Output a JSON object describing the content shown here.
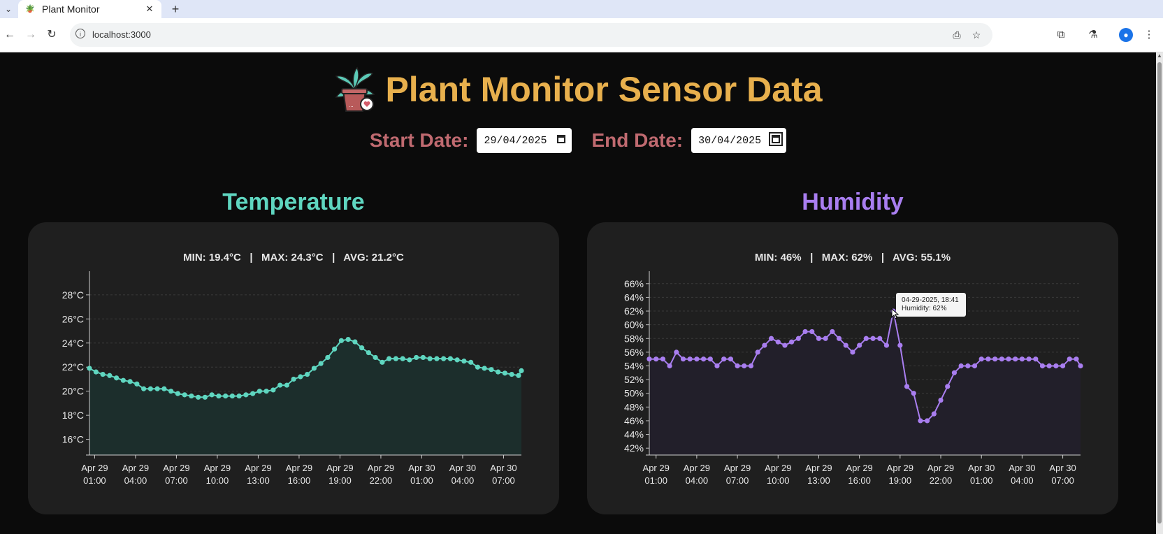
{
  "browser": {
    "tab_title": "Plant Monitor",
    "url": "localhost:3000"
  },
  "header": {
    "title": "Plant Monitor Sensor Data"
  },
  "filters": {
    "start_label": "Start Date:",
    "start_value": "29/04/2025",
    "end_label": "End Date:",
    "end_value": "30/04/2025"
  },
  "colors": {
    "title": "#e8b04d",
    "date_label": "#c06a70",
    "temperature": "#5fd6c0",
    "humidity": "#a97ef0"
  },
  "temperature": {
    "heading": "Temperature",
    "stats": "MIN: 19.4°C   |   MAX: 24.3°C   |   AVG: 21.2°C"
  },
  "humidity": {
    "heading": "Humidity",
    "stats": "MIN: 46%   |   MAX: 62%   |   AVG: 55.1%",
    "tooltip_line1": "04-29-2025, 18:41",
    "tooltip_line2": "Humidity: 62%"
  },
  "chart_data": [
    {
      "type": "area",
      "title": "Temperature",
      "y_unit": "°C",
      "ylim": [
        14.7,
        29.5
      ],
      "y_ticks": [
        16,
        18,
        20,
        22,
        24,
        26,
        28
      ],
      "y_tick_labels": [
        "16°C",
        "18°C",
        "20°C",
        "22°C",
        "24°C",
        "26°C",
        "28°C"
      ],
      "x_range_hours": [
        0.12,
        31.81
      ],
      "x_tick_hours": [
        0.5,
        3.5,
        6.5,
        9.5,
        12.5,
        15.5,
        18.5,
        21.5,
        24.5,
        27.5,
        30.5
      ],
      "x_tick_labels": [
        [
          "Apr 29",
          "01:00"
        ],
        [
          "Apr 29",
          "04:00"
        ],
        [
          "Apr 29",
          "07:00"
        ],
        [
          "Apr 29",
          "10:00"
        ],
        [
          "Apr 29",
          "13:00"
        ],
        [
          "Apr 29",
          "16:00"
        ],
        [
          "Apr 29",
          "19:00"
        ],
        [
          "Apr 29",
          "22:00"
        ],
        [
          "Apr 30",
          "01:00"
        ],
        [
          "Apr 30",
          "04:00"
        ],
        [
          "Apr 30",
          "07:00"
        ]
      ],
      "grid": true,
      "color": "#5fd6c0",
      "fill": "#1c2e2c",
      "x_hours": [
        0.12,
        0.6,
        1.1,
        1.6,
        2.1,
        2.6,
        3.1,
        3.6,
        4.1,
        4.6,
        5.1,
        5.6,
        6.1,
        6.6,
        7.1,
        7.6,
        8.1,
        8.6,
        9.1,
        9.6,
        10.1,
        10.6,
        11.1,
        11.6,
        12.1,
        12.6,
        13.1,
        13.6,
        14.1,
        14.6,
        15.1,
        15.6,
        16.1,
        16.6,
        17.1,
        17.6,
        18.1,
        18.6,
        19.1,
        19.6,
        20.1,
        20.6,
        21.1,
        21.6,
        22.1,
        22.6,
        23.1,
        23.6,
        24.1,
        24.6,
        25.1,
        25.6,
        26.1,
        26.6,
        27.1,
        27.6,
        28.1,
        28.6,
        29.1,
        29.6,
        30.1,
        30.6,
        31.1,
        31.6,
        31.81
      ],
      "values": [
        21.9,
        21.6,
        21.4,
        21.3,
        21.1,
        20.9,
        20.8,
        20.6,
        20.2,
        20.2,
        20.2,
        20.2,
        20.0,
        19.8,
        19.7,
        19.6,
        19.5,
        19.5,
        19.7,
        19.6,
        19.6,
        19.6,
        19.6,
        19.7,
        19.8,
        20.0,
        20.0,
        20.1,
        20.5,
        20.5,
        21.0,
        21.2,
        21.4,
        21.9,
        22.3,
        22.8,
        23.5,
        24.2,
        24.3,
        24.1,
        23.6,
        23.2,
        22.8,
        22.4,
        22.7,
        22.7,
        22.7,
        22.6,
        22.8,
        22.8,
        22.7,
        22.7,
        22.7,
        22.7,
        22.6,
        22.5,
        22.4,
        22.0,
        21.9,
        21.8,
        21.6,
        21.5,
        21.4,
        21.3,
        21.7
      ]
    },
    {
      "type": "line",
      "title": "Humidity",
      "y_unit": "%",
      "ylim": [
        41,
        67
      ],
      "y_ticks": [
        42,
        44,
        46,
        48,
        50,
        52,
        54,
        56,
        58,
        60,
        62,
        64,
        66
      ],
      "y_tick_labels": [
        "42%",
        "44%",
        "46%",
        "48%",
        "50%",
        "52%",
        "54%",
        "56%",
        "58%",
        "60%",
        "62%",
        "64%",
        "66%"
      ],
      "x_range_hours": [
        0.0,
        31.81
      ],
      "x_tick_hours": [
        0.5,
        3.5,
        6.5,
        9.5,
        12.5,
        15.5,
        18.5,
        21.5,
        24.5,
        27.5,
        30.5
      ],
      "x_tick_labels": [
        [
          "Apr 29",
          "01:00"
        ],
        [
          "Apr 29",
          "04:00"
        ],
        [
          "Apr 29",
          "07:00"
        ],
        [
          "Apr 29",
          "10:00"
        ],
        [
          "Apr 29",
          "13:00"
        ],
        [
          "Apr 29",
          "16:00"
        ],
        [
          "Apr 29",
          "19:00"
        ],
        [
          "Apr 29",
          "22:00"
        ],
        [
          "Apr 30",
          "01:00"
        ],
        [
          "Apr 30",
          "04:00"
        ],
        [
          "Apr 30",
          "07:00"
        ]
      ],
      "grid": true,
      "color": "#a97ef0",
      "fill": "#221f2a",
      "x_hours": [
        0.0,
        0.5,
        1.0,
        1.5,
        2.0,
        2.5,
        3.0,
        3.5,
        4.0,
        4.5,
        5.0,
        5.5,
        6.0,
        6.5,
        7.0,
        7.5,
        8.0,
        8.5,
        9.0,
        9.5,
        10.0,
        10.5,
        11.0,
        11.5,
        12.0,
        12.5,
        13.0,
        13.5,
        14.0,
        14.5,
        15.0,
        15.5,
        16.0,
        16.5,
        17.0,
        17.5,
        18.0,
        18.5,
        19.0,
        19.5,
        20.0,
        20.5,
        21.0,
        21.5,
        22.0,
        22.5,
        23.0,
        23.5,
        24.0,
        24.5,
        25.0,
        25.5,
        26.0,
        26.5,
        27.0,
        27.5,
        28.0,
        28.5,
        29.0,
        29.5,
        30.0,
        30.5,
        31.0,
        31.5,
        31.81
      ],
      "values": [
        55,
        55,
        55,
        54,
        56,
        55,
        55,
        55,
        55,
        55,
        54,
        55,
        55,
        54,
        54,
        54,
        56,
        57,
        58,
        57.5,
        57,
        57.5,
        58,
        59,
        59,
        58,
        58,
        59,
        58,
        57,
        56,
        57,
        58,
        58,
        58,
        57,
        62,
        57,
        51,
        50,
        46,
        46,
        47,
        49,
        51,
        53,
        54,
        54,
        54,
        55,
        55,
        55,
        55,
        55,
        55,
        55,
        55,
        55,
        54,
        54,
        54,
        54,
        55,
        55,
        54
      ]
    }
  ]
}
